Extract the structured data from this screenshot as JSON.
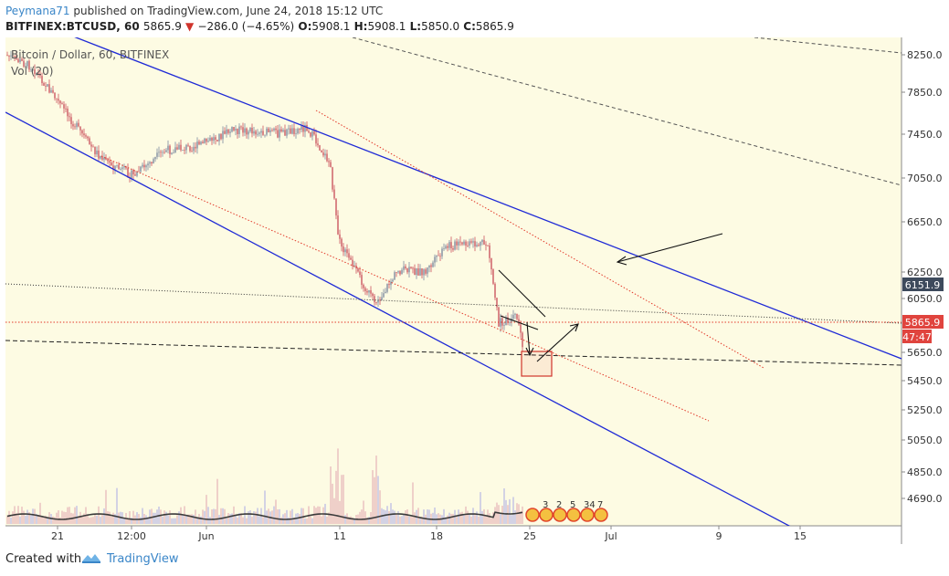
{
  "header": {
    "author": "Peymana71",
    "published_text": " published on TradingView.com, June 24, 2018 15:12 UTC",
    "symbol": "BITFINEX:BTCUSD, 60",
    "last": "5865.9",
    "change": "−286.0 (−4.65%)",
    "o_label": "O:",
    "o": "5908.1",
    "h_label": "H:",
    "h": "5908.1",
    "l_label": "L:",
    "l": "5850.0",
    "c_label": "C:",
    "c": "5865.9"
  },
  "legend": {
    "series_title": "Bitcoin / Dollar, 60, BITFINEX",
    "volume_title": "Vol (20)"
  },
  "price_axis": {
    "ticks": [
      "8250.0",
      "7850.0",
      "7450.0",
      "7050.0",
      "6650.0",
      "6250.0",
      "6050.0",
      "5650.0",
      "5450.0",
      "5250.0",
      "5050.0",
      "4850.0",
      "4690.0"
    ],
    "tag_level": "6151.9",
    "tag_last": "5865.9",
    "tag_timer": "47:47"
  },
  "time_axis": {
    "ticks": [
      "21",
      "12:00",
      "Jun",
      "11",
      "18",
      "25",
      "Jul",
      "9",
      "15"
    ]
  },
  "events": [
    "3",
    "2",
    "5",
    "34",
    "7"
  ],
  "footer": {
    "created_with": "Created with",
    "brand": "TradingView"
  },
  "colors": {
    "background": "#fdfbe3",
    "candle_up": "#6a7a94",
    "candle_down": "#c43b4a",
    "channel": "#1f2ad6",
    "dotted_red": "#e2392a",
    "last_price": "#e0443e",
    "level_tag": "#3d4a5c"
  },
  "chart_data": {
    "type": "candlestick",
    "title": "Bitcoin / Dollar, 60, BITFINEX",
    "x_labels": [
      "21",
      "12:00",
      "Jun",
      "11",
      "18",
      "25",
      "Jul",
      "9",
      "15"
    ],
    "y_range": [
      4550,
      8400
    ],
    "price_path": [
      {
        "x": "May 20",
        "price": 8250
      },
      {
        "x": "May 21",
        "price": 8150
      },
      {
        "x": "May 23",
        "price": 7500
      },
      {
        "x": "May 24",
        "price": 7400
      },
      {
        "x": "May 27",
        "price": 7280
      },
      {
        "x": "May 29",
        "price": 7480
      },
      {
        "x": "Jun 1",
        "price": 7520
      },
      {
        "x": "Jun 3",
        "price": 7650
      },
      {
        "x": "Jun 6",
        "price": 7620
      },
      {
        "x": "Jun 8",
        "price": 7670
      },
      {
        "x": "Jun 10",
        "price": 7380
      },
      {
        "x": "Jun 11",
        "price": 6750
      },
      {
        "x": "Jun 12",
        "price": 6560
      },
      {
        "x": "Jun 13",
        "price": 6250
      },
      {
        "x": "Jun 14",
        "price": 6520
      },
      {
        "x": "Jun 16",
        "price": 6510
      },
      {
        "x": "Jun 18",
        "price": 6720
      },
      {
        "x": "Jun 21",
        "price": 6730
      },
      {
        "x": "Jun 22",
        "price": 6100
      },
      {
        "x": "Jun 23",
        "price": 6150
      },
      {
        "x": "Jun 24",
        "price": 5865.9
      }
    ],
    "last_price": 5865.9,
    "marked_level": 6151.9,
    "volume_indicator": "Vol (20)"
  }
}
